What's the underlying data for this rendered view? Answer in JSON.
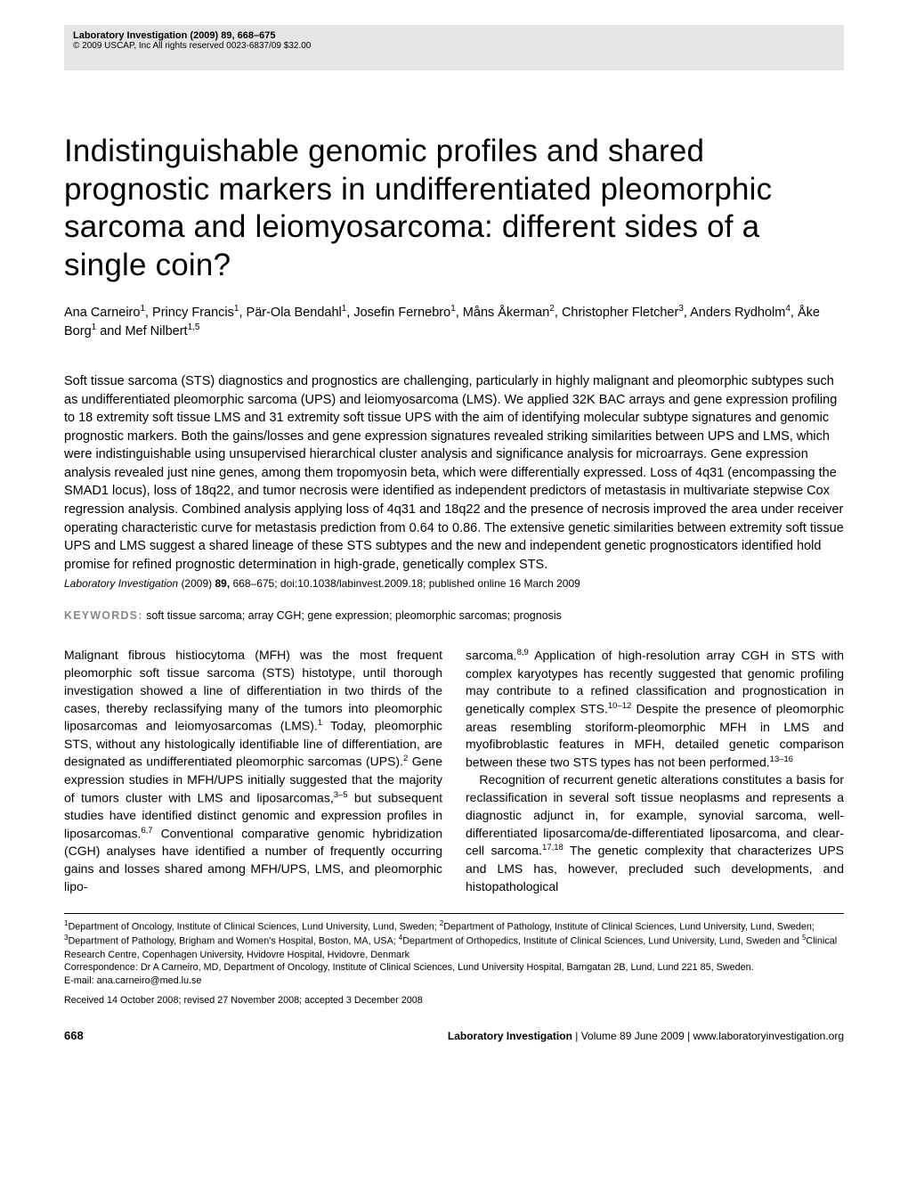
{
  "header": {
    "journal_ref": "Laboratory Investigation (2009) 89, 668–675",
    "copyright": "© 2009 USCAP, Inc All rights reserved 0023-6837/09 $32.00"
  },
  "title": "Indistinguishable genomic profiles and shared prognostic markers in undifferentiated pleomorphic sarcoma and leiomyosarcoma: different sides of a single coin?",
  "authors_html": "Ana Carneiro<sup>1</sup>, Princy Francis<sup>1</sup>, Pär-Ola Bendahl<sup>1</sup>, Josefin Fernebro<sup>1</sup>, Måns Åkerman<sup>2</sup>, Christopher Fletcher<sup>3</sup>, Anders Rydholm<sup>4</sup>, Åke Borg<sup>1</sup> and Mef Nilbert<sup>1,5</sup>",
  "abstract": "Soft tissue sarcoma (STS) diagnostics and prognostics are challenging, particularly in highly malignant and pleomorphic subtypes such as undifferentiated pleomorphic sarcoma (UPS) and leiomyosarcoma (LMS). We applied 32K BAC arrays and gene expression profiling to 18 extremity soft tissue LMS and 31 extremity soft tissue UPS with the aim of identifying molecular subtype signatures and genomic prognostic markers. Both the gains/losses and gene expression signatures revealed striking similarities between UPS and LMS, which were indistinguishable using unsupervised hierarchical cluster analysis and significance analysis for microarrays. Gene expression analysis revealed just nine genes, among them tropomyosin beta, which were differentially expressed. Loss of 4q31 (encompassing the SMAD1 locus), loss of 18q22, and tumor necrosis were identified as independent predictors of metastasis in multivariate stepwise Cox regression analysis. Combined analysis applying loss of 4q31 and 18q22 and the presence of necrosis improved the area under receiver operating characteristic curve for metastasis prediction from 0.64 to 0.86. The extensive genetic similarities between extremity soft tissue UPS and LMS suggest a shared lineage of these STS subtypes and the new and independent genetic prognosticators identified hold promise for refined prognostic determination in high-grade, genetically complex STS.",
  "citation": {
    "journal": "Laboratory Investigation",
    "year": "(2009)",
    "volume": "89,",
    "pages": "668–675;",
    "doi": "doi:10.1038/labinvest.2009.18; published online 16 March 2009"
  },
  "keywords": {
    "label": "KEYWORDS:",
    "text": "soft tissue sarcoma; array CGH; gene expression; pleomorphic sarcomas; prognosis"
  },
  "body": {
    "col1_p1": "Malignant fibrous histiocytoma (MFH) was the most frequent pleomorphic soft tissue sarcoma (STS) histotype, until thorough investigation showed a line of differentiation in two thirds of the cases, thereby reclassifying many of the tumors into pleomorphic liposarcomas and leiomyosarcomas (LMS).<sup>1</sup> Today, pleomorphic STS, without any histologically identifiable line of differentiation, are designated as undifferentiated pleomorphic sarcomas (UPS).<sup>2</sup> Gene expression studies in MFH/UPS initially suggested that the majority of tumors cluster with LMS and liposarcomas,<sup>3–5</sup> but subsequent studies have identified distinct genomic and expression profiles in liposarcomas.<sup>6,7</sup> Conventional comparative genomic hybridization (CGH) analyses have identified a number of frequently occurring gains and losses shared among MFH/UPS, LMS, and pleomorphic lipo-",
    "col2_p1": "sarcoma.<sup>8,9</sup> Application of high-resolution array CGH in STS with complex karyotypes has recently suggested that genomic profiling may contribute to a refined classification and prognostication in genetically complex STS.<sup>10–12</sup> Despite the presence of pleomorphic areas resembling storiform-pleomorphic MFH in LMS and myofibroblastic features in MFH, detailed genetic comparison between these two STS types has not been performed.<sup>13–16</sup>",
    "col2_p2": "Recognition of recurrent genetic alterations constitutes a basis for reclassification in several soft tissue neoplasms and represents a diagnostic adjunct in, for example, synovial sarcoma, well-differentiated liposarcoma/de-differentiated liposarcoma, and clear-cell sarcoma.<sup>17,18</sup> The genetic complexity that characterizes UPS and LMS has, however, precluded such developments, and histopathological"
  },
  "footnotes": {
    "affil_html": "<sup>1</sup>Department of Oncology, Institute of Clinical Sciences, Lund University, Lund, Sweden; <sup>2</sup>Department of Pathology, Institute of Clinical Sciences, Lund University, Lund, Sweden; <sup>3</sup>Department of Pathology, Brigham and Women's Hospital, Boston, MA, USA; <sup>4</sup>Department of Orthopedics, Institute of Clinical Sciences, Lund University, Lund, Sweden and <sup>5</sup>Clinical Research Centre, Copenhagen University, Hvidovre Hospital, Hvidovre, Denmark",
    "correspondence": "Correspondence: Dr A Carneiro, MD, Department of Oncology, Institute of Clinical Sciences, Lund University Hospital, Barngatan 2B, Lund, Lund 221 85, Sweden.",
    "email": "E-mail: ana.carneiro@med.lu.se",
    "received": "Received 14 October 2008; revised 27 November 2008; accepted 3 December 2008"
  },
  "footer": {
    "page": "668",
    "journal": "Laboratory Investigation",
    "issue": " | Volume 89 June 2009 | ",
    "url": "www.laboratoryinvestigation.org"
  }
}
